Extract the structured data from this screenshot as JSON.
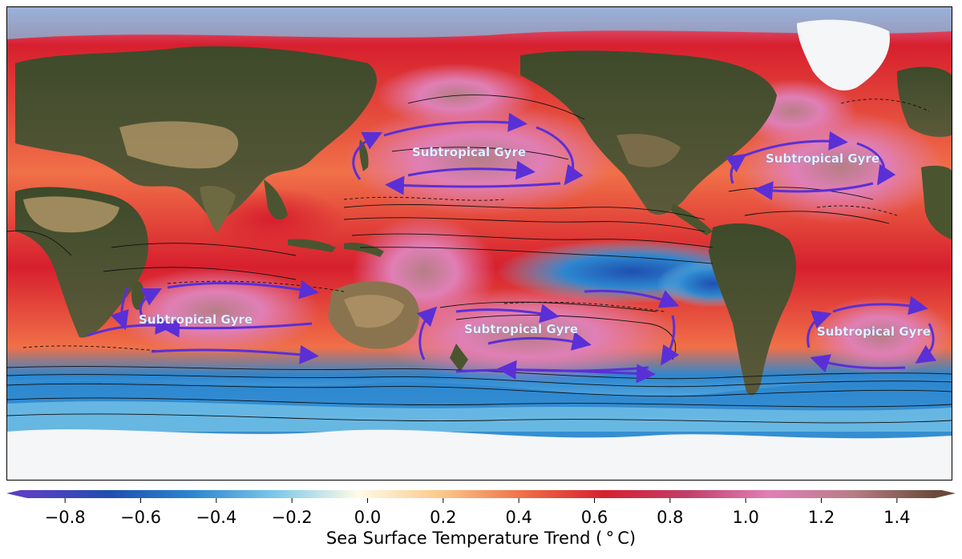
{
  "map": {
    "gyre_labels": [
      "Subtropical Gyre",
      "Subtropical Gyre",
      "Subtropical Gyre",
      "Subtropical Gyre",
      "Subtropical Gyre"
    ],
    "colors": {
      "land": "#4a5530",
      "desert": "#b59a6a",
      "ice": "#f4f6f8",
      "arrow": "#5b2fd6",
      "contour": "#111111"
    }
  },
  "colorbar": {
    "min": -0.9,
    "max": 1.5,
    "ticks": [
      "−0.8",
      "−0.6",
      "−0.4",
      "−0.2",
      "0.0",
      "0.2",
      "0.4",
      "0.6",
      "0.8",
      "1.0",
      "1.2",
      "1.4"
    ],
    "tick_values": [
      -0.8,
      -0.6,
      -0.4,
      -0.2,
      0.0,
      0.2,
      0.4,
      0.6,
      0.8,
      1.0,
      1.2,
      1.4
    ],
    "label": "Sea Surface Temperature Trend ($^\\circ$C)",
    "label_display": "Sea Surface Temperature Trend ( ° C)",
    "colors": [
      "#5a3fc4",
      "#1f4fb0",
      "#2c86cf",
      "#7cc8ea",
      "#fffbe8",
      "#fbc98a",
      "#f07048",
      "#d71f2e",
      "#c23e6a",
      "#e07fb6",
      "#b77e86",
      "#6b4a3a"
    ]
  }
}
